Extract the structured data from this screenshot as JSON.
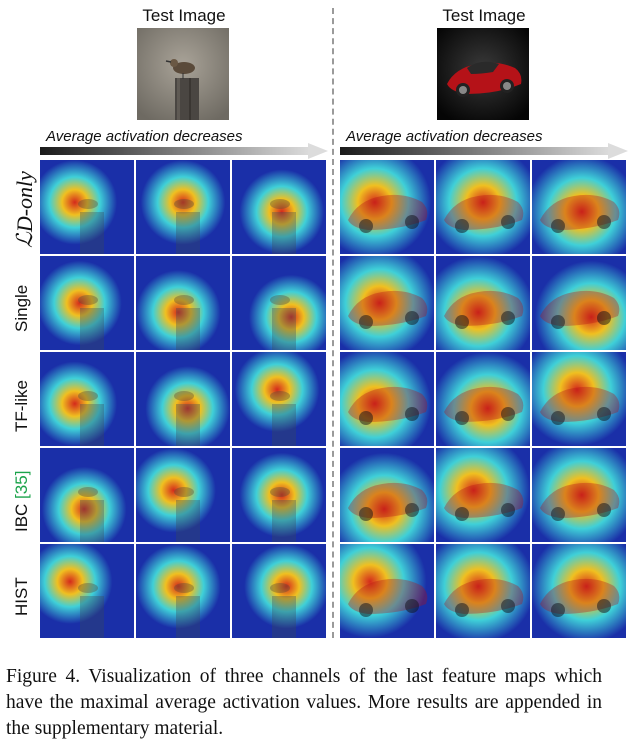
{
  "figure": {
    "left_panel": {
      "title": "Test Image",
      "arrow_label": "Average activation decreases"
    },
    "right_panel": {
      "title": "Test Image",
      "arrow_label": "Average activation decreases"
    },
    "row_labels": [
      {
        "main": "ℒD-only",
        "cite": ""
      },
      {
        "main": "Single",
        "cite": ""
      },
      {
        "main": "TF-like",
        "cite": ""
      },
      {
        "main": "IBC ",
        "cite": "[35]"
      },
      {
        "main": "HIST",
        "cite": ""
      }
    ],
    "caption": "Figure 4. Visualization of three channels of the last feature maps which have the maximal average activation values. More results are appended in the supplementary material.",
    "colors": {
      "heat_low": "#1a2fa8",
      "heat_mid": "#3fd0d8",
      "heat_high": "#d42a1c",
      "car_red": "#b51218"
    }
  }
}
